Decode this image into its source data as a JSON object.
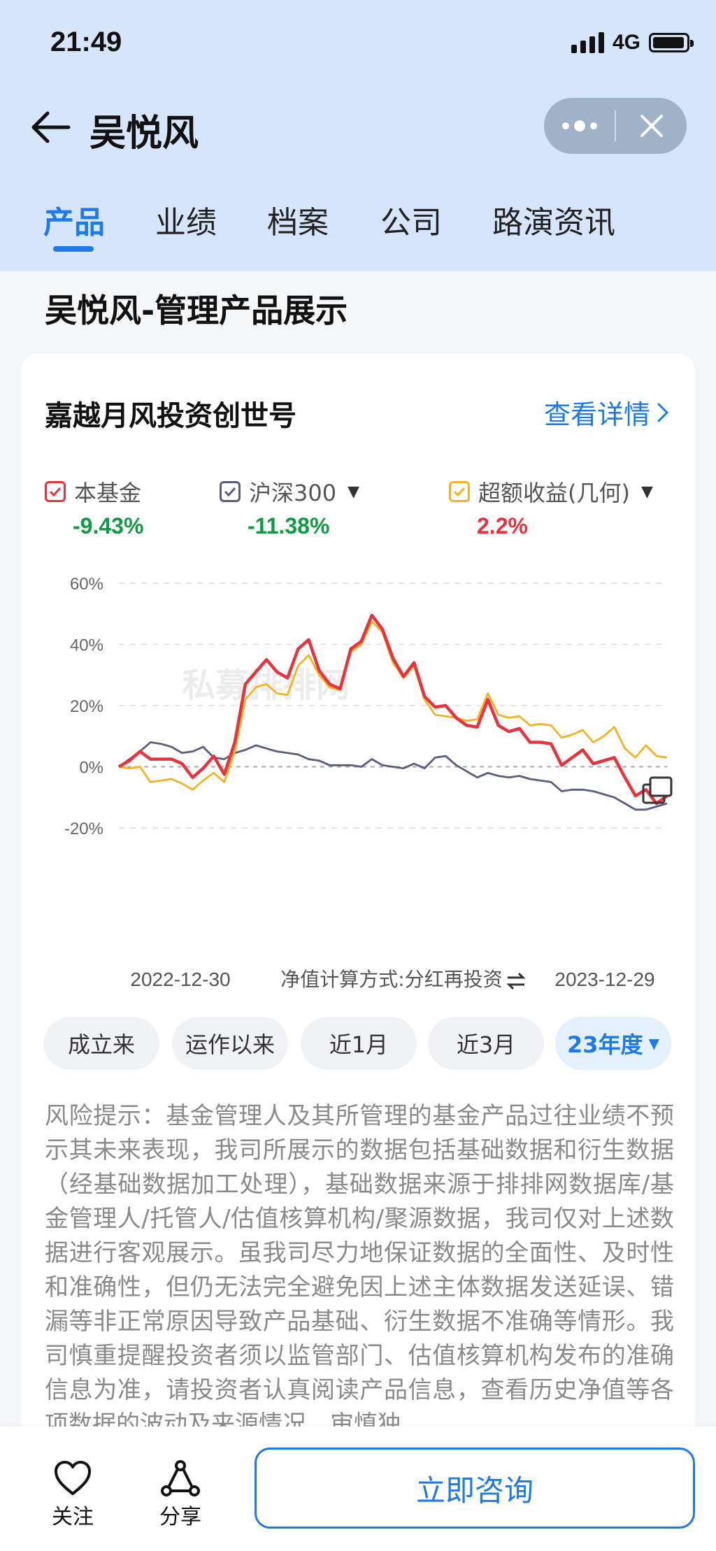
{
  "status": {
    "time": "21:49",
    "network": "4G"
  },
  "header": {
    "title": "吴悦风"
  },
  "tabs": [
    {
      "label": "产品",
      "active": true
    },
    {
      "label": "业绩",
      "active": false
    },
    {
      "label": "档案",
      "active": false
    },
    {
      "label": "公司",
      "active": false
    },
    {
      "label": "路演资讯",
      "active": false
    }
  ],
  "section": {
    "title": "吴悦风-管理产品展示"
  },
  "card": {
    "fund_name": "嘉越月风投资创世号",
    "detail_link": "查看详情",
    "legend": [
      {
        "label": "本基金",
        "value": "-9.43%",
        "color": "#e8333d",
        "value_color": "#129a46",
        "has_dropdown": false
      },
      {
        "label": "沪深300",
        "value": "-11.38%",
        "color": "#5c5c7e",
        "value_color": "#129a46",
        "has_dropdown": true
      },
      {
        "label": "超额收益(几何)",
        "value": "2.2%",
        "color": "#f5b224",
        "value_color": "#e8333d",
        "has_dropdown": true
      }
    ],
    "watermark": "私募排排网",
    "x_start_label": "2022-12-30",
    "x_end_label": "2023-12-29",
    "nav_method": "净值计算方式:分红再投资",
    "ranges": [
      {
        "label": "成立来",
        "active": false
      },
      {
        "label": "运作以来",
        "active": false
      },
      {
        "label": "近1月",
        "active": false
      },
      {
        "label": "近3月",
        "active": false
      },
      {
        "label": "23年度",
        "active": true
      }
    ],
    "risk_text": "风险提示：基金管理人及其所管理的基金产品过往业绩不预示其未来表现，我司所展示的数据包括基础数据和衍生数据（经基础数据加工处理），基础数据来源于排排网数据库/基金管理人/托管人/估值核算机构/聚源数据，我司仅对上述数据进行客观展示。虽我司尽力地保证数据的全面性、及时性和准确性，但仍无法完全避免因上述主体数据发送延误、错漏等非正常原因导致产品基础、衍生数据不准确等情形。我司慎重提醒投资者须以监管部门、估值核算机构发布的准确信息为准，请投资者认真阅读产品信息，查看历史净值等各项数据的波动及来源情况，审慎独"
  },
  "chart_data": {
    "type": "line",
    "x_range": [
      "2022-12-30",
      "2023-12-29"
    ],
    "y_ticks": [
      "60%",
      "40%",
      "20%",
      "0%",
      "-20%"
    ],
    "ylim": [
      -20,
      60
    ],
    "y_unit": "%",
    "grid": true,
    "series": [
      {
        "name": "本基金",
        "color": "#e8333d",
        "values": [
          0,
          2,
          5,
          2.5,
          2.5,
          2.5,
          1,
          -3.5,
          -0.5,
          3.5,
          -2.5,
          8,
          27,
          31,
          35,
          31,
          29,
          38.5,
          41.5,
          31.5,
          27,
          25.5,
          38.5,
          41,
          49.5,
          45,
          35.5,
          29.5,
          34,
          23,
          19.5,
          20,
          16,
          13.5,
          13,
          22,
          13.5,
          11.5,
          12.5,
          8,
          8,
          7.5,
          0.5,
          3,
          5.5,
          1,
          2,
          3,
          -3.5,
          -9.5,
          -7.5,
          -12,
          -9.5
        ]
      },
      {
        "name": "沪深300",
        "color": "#5c5c7e",
        "values": [
          0,
          2.5,
          5,
          8,
          7.5,
          6.5,
          4.5,
          5,
          6.5,
          3,
          2.5,
          4.5,
          5.5,
          7,
          6,
          5,
          4.5,
          4,
          2.5,
          2,
          0.5,
          0.5,
          0.5,
          0,
          2.5,
          0.5,
          0,
          -0.5,
          1,
          -0.5,
          3,
          3.5,
          0.5,
          -1.5,
          -3.5,
          -2,
          -3,
          -3.5,
          -3,
          -4,
          -4.5,
          -5,
          -8,
          -7.5,
          -7.5,
          -8,
          -9,
          -10,
          -12,
          -14,
          -14,
          -13,
          -12
        ]
      },
      {
        "name": "超额收益(几何)",
        "color": "#f5b224",
        "values": [
          0,
          -0.5,
          0,
          -5,
          -4.5,
          -4,
          -5.5,
          -7.5,
          -4.5,
          -2,
          -5,
          5,
          22,
          26,
          27,
          24,
          23.5,
          33,
          36.5,
          30,
          26,
          25,
          37.5,
          40,
          47.5,
          44,
          34,
          29,
          33,
          22,
          17,
          16.5,
          16,
          15,
          15.5,
          24,
          17,
          16,
          16.5,
          13.5,
          14,
          13.5,
          9.5,
          10.5,
          12,
          8,
          10,
          13,
          6,
          3,
          7,
          3.5,
          3
        ]
      }
    ]
  }
}
